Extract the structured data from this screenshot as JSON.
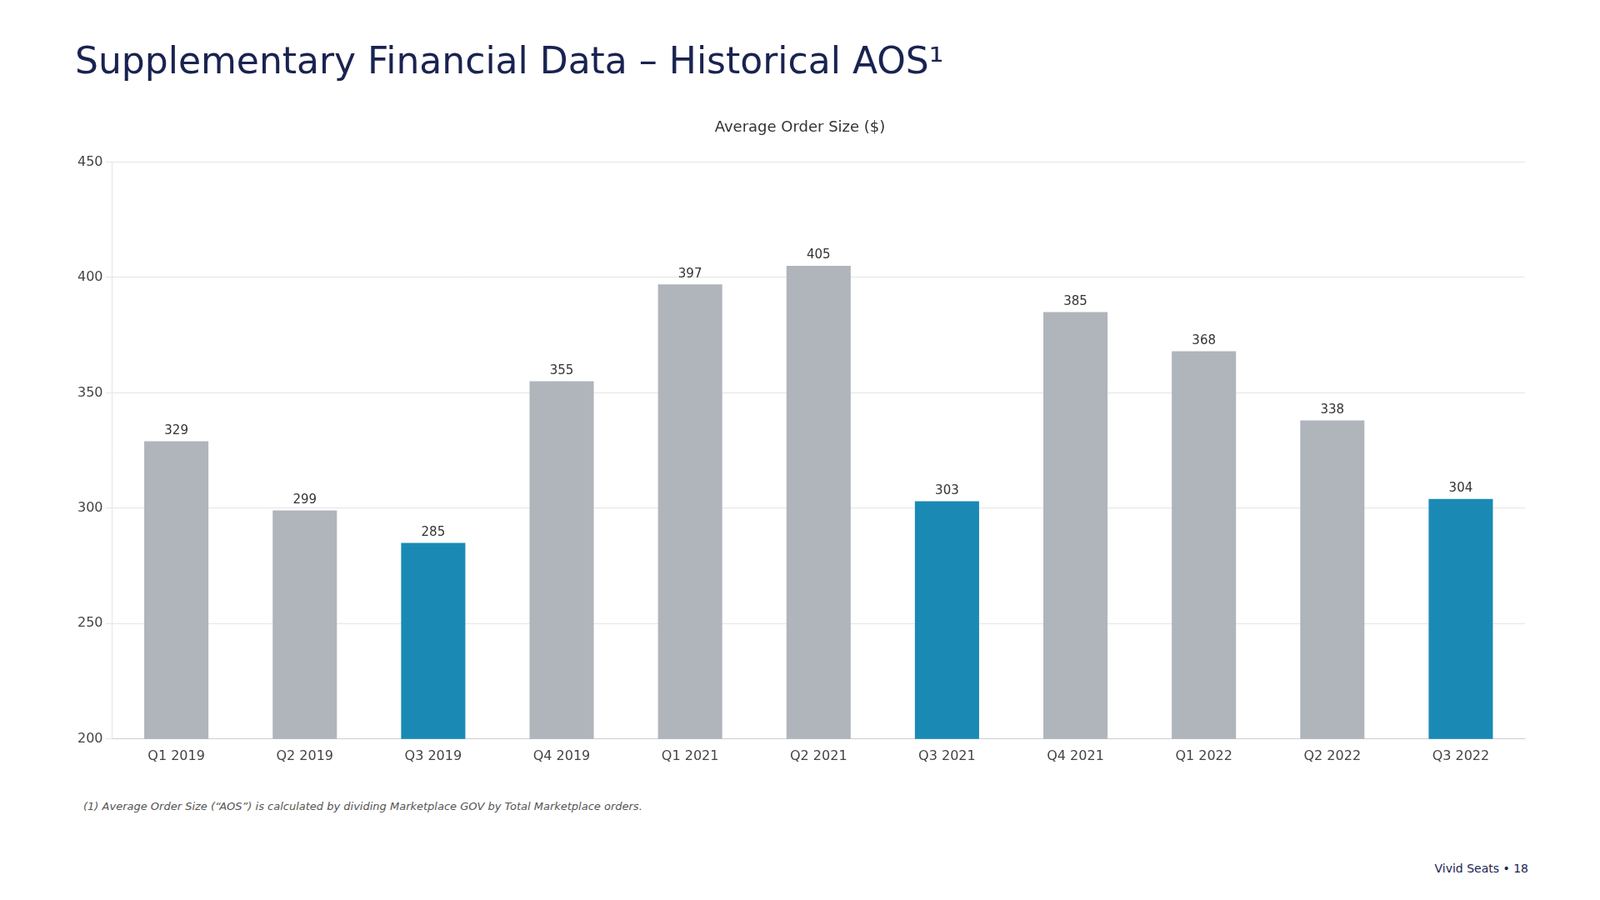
{
  "chart_data": {
    "type": "bar",
    "title": "Supplementary Financial Data – Historical AOS¹",
    "subtitle": "Average Order Size ($)",
    "categories": [
      "Q1 2019",
      "Q2 2019",
      "Q3 2019",
      "Q4 2019",
      "Q1 2021",
      "Q2 2021",
      "Q3 2021",
      "Q4 2021",
      "Q1 2022",
      "Q2 2022",
      "Q3 2022"
    ],
    "values": [
      329,
      299,
      285,
      355,
      397,
      405,
      303,
      385,
      368,
      338,
      304
    ],
    "colors": [
      "#b0b5bc",
      "#b0b5bc",
      "#1a8ab5",
      "#b0b5bc",
      "#b0b5bc",
      "#b0b5bc",
      "#1a8ab5",
      "#b0b5bc",
      "#b0b5bc",
      "#b0b5bc",
      "#1a8ab5"
    ],
    "ylim": [
      200,
      450
    ],
    "yticks": [
      200,
      250,
      300,
      350,
      400,
      450
    ],
    "grid": true,
    "data_labels": true,
    "annotations": [
      "(1)   Average Order Size (“AOS”) is calculated by dividing Marketplace GOV by Total Marketplace orders.",
      "Vivid Seats  •  18"
    ]
  }
}
